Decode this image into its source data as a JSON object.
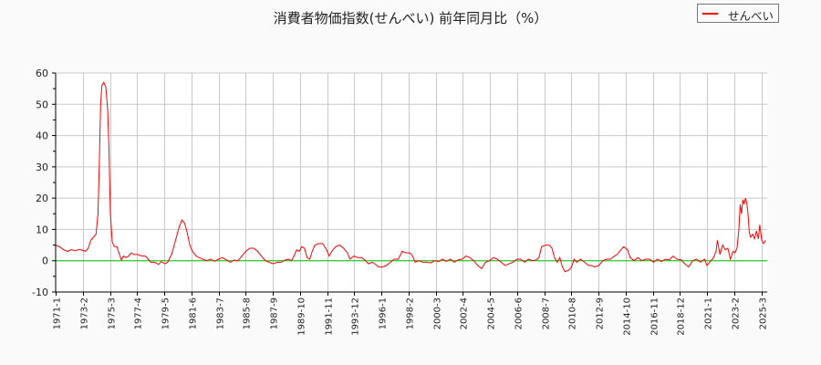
{
  "chart_data": {
    "type": "line",
    "title": "消費者物価指数(せんべい) 前年同月比（%）",
    "xlabel": "",
    "ylabel": "",
    "ylim": [
      -10,
      60
    ],
    "yticks": [
      -10,
      0,
      10,
      20,
      30,
      40,
      50,
      60
    ],
    "grid": true,
    "legend_position": "top-right",
    "x_tick_labels": [
      "1971-1",
      "1973-2",
      "1975-3",
      "1977-4",
      "1979-5",
      "1981-6",
      "1983-7",
      "1985-8",
      "1987-9",
      "1989-10",
      "1991-11",
      "1993-12",
      "1996-1",
      "1998-2",
      "2000-3",
      "2002-4",
      "2004-5",
      "2006-6",
      "2008-7",
      "2010-8",
      "2012-9",
      "2014-10",
      "2016-11",
      "2018-12",
      "2021-1",
      "2023-2",
      "2025-3"
    ],
    "x_range": [
      "1971-1",
      "2025-8"
    ],
    "reference_line": {
      "y": 0,
      "color": "#00cc00"
    },
    "series": [
      {
        "name": "せんべい",
        "color": "#ff0000",
        "points": [
          [
            1971.0,
            5.0
          ],
          [
            1971.3,
            4.5
          ],
          [
            1971.6,
            3.5
          ],
          [
            1971.9,
            3.0
          ],
          [
            1972.2,
            3.5
          ],
          [
            1972.5,
            3.2
          ],
          [
            1972.8,
            3.6
          ],
          [
            1973.1,
            3.3
          ],
          [
            1973.3,
            3.0
          ],
          [
            1973.5,
            4.0
          ],
          [
            1973.7,
            6.5
          ],
          [
            1973.9,
            7.5
          ],
          [
            1974.1,
            8.5
          ],
          [
            1974.25,
            15
          ],
          [
            1974.35,
            30
          ],
          [
            1974.45,
            50
          ],
          [
            1974.55,
            56
          ],
          [
            1974.7,
            57
          ],
          [
            1974.85,
            55.5
          ],
          [
            1975.0,
            48
          ],
          [
            1975.1,
            35
          ],
          [
            1975.2,
            15
          ],
          [
            1975.35,
            6
          ],
          [
            1975.5,
            4.5
          ],
          [
            1975.7,
            4.5
          ],
          [
            1975.9,
            2
          ],
          [
            1976.05,
            0.2
          ],
          [
            1976.2,
            1.5
          ],
          [
            1976.4,
            1.0
          ],
          [
            1976.6,
            1.5
          ],
          [
            1976.8,
            2.5
          ],
          [
            1977.0,
            2.0
          ],
          [
            1977.3,
            2.0
          ],
          [
            1977.6,
            1.5
          ],
          [
            1977.9,
            1.5
          ],
          [
            1978.1,
            0.5
          ],
          [
            1978.3,
            -0.5
          ],
          [
            1978.6,
            -0.5
          ],
          [
            1978.9,
            -1.2
          ],
          [
            1979.1,
            -0.3
          ],
          [
            1979.4,
            -1.0
          ],
          [
            1979.6,
            -0.5
          ],
          [
            1979.9,
            2.0
          ],
          [
            1980.1,
            5
          ],
          [
            1980.3,
            8
          ],
          [
            1980.5,
            11
          ],
          [
            1980.7,
            13
          ],
          [
            1980.9,
            12
          ],
          [
            1981.1,
            9
          ],
          [
            1981.3,
            5
          ],
          [
            1981.5,
            3
          ],
          [
            1981.8,
            1.5
          ],
          [
            1982.0,
            1.0
          ],
          [
            1982.3,
            0.5
          ],
          [
            1982.6,
            0.0
          ],
          [
            1982.9,
            0.5
          ],
          [
            1983.2,
            -0.2
          ],
          [
            1983.5,
            0.5
          ],
          [
            1983.8,
            1.0
          ],
          [
            1984.1,
            0.3
          ],
          [
            1984.4,
            -0.5
          ],
          [
            1984.7,
            0.2
          ],
          [
            1985.0,
            0.0
          ],
          [
            1985.3,
            1.5
          ],
          [
            1985.6,
            3.0
          ],
          [
            1985.9,
            4.0
          ],
          [
            1986.2,
            4.0
          ],
          [
            1986.5,
            3.0
          ],
          [
            1986.8,
            1.5
          ],
          [
            1987.1,
            0.0
          ],
          [
            1987.4,
            -0.5
          ],
          [
            1987.7,
            -1.0
          ],
          [
            1988.0,
            -0.5
          ],
          [
            1988.3,
            -0.5
          ],
          [
            1988.6,
            0.2
          ],
          [
            1988.9,
            0.5
          ],
          [
            1989.1,
            0.0
          ],
          [
            1989.3,
            1.5
          ],
          [
            1989.5,
            3.5
          ],
          [
            1989.7,
            3.0
          ],
          [
            1989.9,
            4.5
          ],
          [
            1990.1,
            4.0
          ],
          [
            1990.3,
            1.0
          ],
          [
            1990.5,
            0.5
          ],
          [
            1990.7,
            3.0
          ],
          [
            1990.9,
            5.0
          ],
          [
            1991.2,
            5.5
          ],
          [
            1991.5,
            5.5
          ],
          [
            1991.8,
            3.5
          ],
          [
            1992.0,
            1.5
          ],
          [
            1992.2,
            3.0
          ],
          [
            1992.5,
            4.5
          ],
          [
            1992.8,
            5.0
          ],
          [
            1993.1,
            4.0
          ],
          [
            1993.4,
            2.5
          ],
          [
            1993.6,
            0.5
          ],
          [
            1993.9,
            1.5
          ],
          [
            1994.2,
            1.0
          ],
          [
            1994.5,
            1.0
          ],
          [
            1994.8,
            0.0
          ],
          [
            1995.0,
            -1.0
          ],
          [
            1995.3,
            -0.5
          ],
          [
            1995.5,
            -1.0
          ],
          [
            1995.8,
            -2.0
          ],
          [
            1996.1,
            -2.0
          ],
          [
            1996.4,
            -1.5
          ],
          [
            1996.7,
            -0.5
          ],
          [
            1997.0,
            0.5
          ],
          [
            1997.3,
            0.5
          ],
          [
            1997.6,
            3.0
          ],
          [
            1997.9,
            2.5
          ],
          [
            1998.2,
            2.5
          ],
          [
            1998.4,
            1.5
          ],
          [
            1998.6,
            -0.5
          ],
          [
            1998.9,
            0.0
          ],
          [
            1999.2,
            -0.5
          ],
          [
            1999.5,
            -0.5
          ],
          [
            1999.8,
            -0.7
          ],
          [
            2000.1,
            0.0
          ],
          [
            2000.4,
            -0.3
          ],
          [
            2000.7,
            0.5
          ],
          [
            2001.0,
            -0.2
          ],
          [
            2001.3,
            0.5
          ],
          [
            2001.6,
            -0.5
          ],
          [
            2001.9,
            0.3
          ],
          [
            2002.2,
            0.5
          ],
          [
            2002.5,
            1.5
          ],
          [
            2002.8,
            1.0
          ],
          [
            2003.1,
            0.0
          ],
          [
            2003.4,
            -1.5
          ],
          [
            2003.7,
            -2.5
          ],
          [
            2004.0,
            -0.5
          ],
          [
            2004.3,
            0.0
          ],
          [
            2004.6,
            1.0
          ],
          [
            2004.9,
            0.5
          ],
          [
            2005.2,
            -0.5
          ],
          [
            2005.5,
            -1.5
          ],
          [
            2005.8,
            -1.0
          ],
          [
            2006.1,
            -0.5
          ],
          [
            2006.4,
            0.5
          ],
          [
            2006.7,
            0.5
          ],
          [
            2007.0,
            -0.5
          ],
          [
            2007.3,
            0.5
          ],
          [
            2007.6,
            0.0
          ],
          [
            2007.9,
            0.3
          ],
          [
            2008.1,
            1.0
          ],
          [
            2008.3,
            4.5
          ],
          [
            2008.6,
            5.0
          ],
          [
            2008.9,
            5.0
          ],
          [
            2009.1,
            4.0
          ],
          [
            2009.3,
            1.0
          ],
          [
            2009.5,
            -0.5
          ],
          [
            2009.7,
            1.0
          ],
          [
            2009.9,
            -2.0
          ],
          [
            2010.1,
            -3.5
          ],
          [
            2010.4,
            -3.0
          ],
          [
            2010.6,
            -2.0
          ],
          [
            2010.8,
            0.5
          ],
          [
            2011.0,
            -0.5
          ],
          [
            2011.3,
            0.5
          ],
          [
            2011.6,
            -0.5
          ],
          [
            2011.9,
            -1.5
          ],
          [
            2012.1,
            -1.5
          ],
          [
            2012.4,
            -2.0
          ],
          [
            2012.7,
            -1.5
          ],
          [
            2013.0,
            0.0
          ],
          [
            2013.3,
            0.5
          ],
          [
            2013.6,
            0.5
          ],
          [
            2013.9,
            1.5
          ],
          [
            2014.1,
            2.0
          ],
          [
            2014.4,
            3.5
          ],
          [
            2014.6,
            4.5
          ],
          [
            2014.9,
            3.5
          ],
          [
            2015.1,
            1.0
          ],
          [
            2015.4,
            0.0
          ],
          [
            2015.7,
            1.0
          ],
          [
            2016.0,
            0.0
          ],
          [
            2016.3,
            0.5
          ],
          [
            2016.6,
            0.5
          ],
          [
            2016.9,
            -0.5
          ],
          [
            2017.2,
            0.5
          ],
          [
            2017.5,
            -0.3
          ],
          [
            2017.8,
            0.5
          ],
          [
            2018.1,
            0.3
          ],
          [
            2018.4,
            1.5
          ],
          [
            2018.7,
            0.5
          ],
          [
            2019.0,
            0.3
          ],
          [
            2019.3,
            -1.0
          ],
          [
            2019.6,
            -2.0
          ],
          [
            2019.9,
            0.0
          ],
          [
            2020.2,
            0.5
          ],
          [
            2020.5,
            -0.5
          ],
          [
            2020.8,
            0.5
          ],
          [
            2021.0,
            -1.5
          ],
          [
            2021.3,
            0.0
          ],
          [
            2021.5,
            1.0
          ],
          [
            2021.7,
            3.0
          ],
          [
            2021.8,
            6.5
          ],
          [
            2022.0,
            2.0
          ],
          [
            2022.2,
            5.0
          ],
          [
            2022.4,
            3.5
          ],
          [
            2022.6,
            4.0
          ],
          [
            2022.8,
            0.5
          ],
          [
            2023.0,
            3.0
          ],
          [
            2023.15,
            2.5
          ],
          [
            2023.3,
            4.0
          ],
          [
            2023.45,
            10
          ],
          [
            2023.55,
            18
          ],
          [
            2023.65,
            15
          ],
          [
            2023.75,
            19.5
          ],
          [
            2023.85,
            18.0
          ],
          [
            2023.95,
            20.0
          ],
          [
            2024.05,
            18.5
          ],
          [
            2024.15,
            15
          ],
          [
            2024.25,
            9
          ],
          [
            2024.35,
            7.5
          ],
          [
            2024.5,
            8.5
          ],
          [
            2024.65,
            7.0
          ],
          [
            2024.8,
            9.5
          ],
          [
            2024.95,
            7.0
          ],
          [
            2025.05,
            11.5
          ],
          [
            2025.2,
            6.5
          ],
          [
            2025.35,
            5.5
          ],
          [
            2025.5,
            6.5
          ]
        ]
      }
    ]
  },
  "legend": {
    "label": "せんべい",
    "color": "#ff0000"
  }
}
